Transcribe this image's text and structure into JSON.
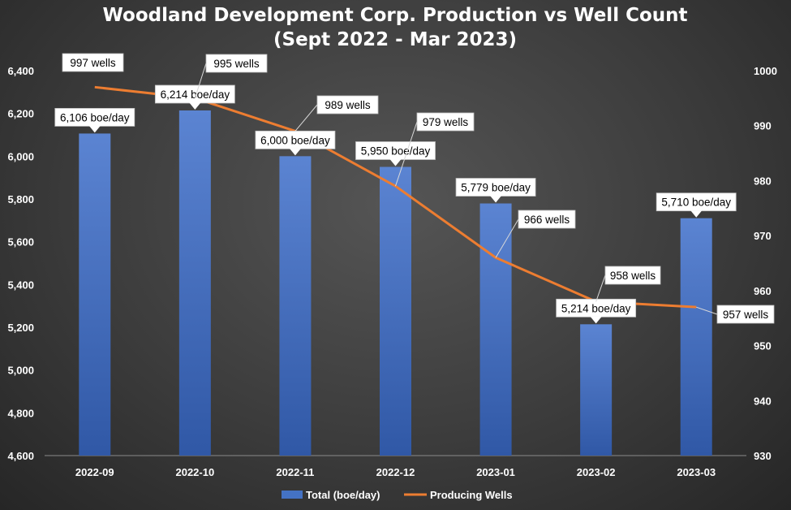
{
  "chart_data": {
    "type": "bar",
    "title": "Woodland Development Corp. Production vs Well Count",
    "subtitle": "(Sept 2022 - Mar  2023)",
    "categories": [
      "2022-09",
      "2022-10",
      "2022-11",
      "2022-12",
      "2023-01",
      "2023-02",
      "2023-03"
    ],
    "series": [
      {
        "name": "Total (boe/day)",
        "type": "bar",
        "axis": "left",
        "values": [
          6106,
          6214,
          6000,
          5950,
          5779,
          5214,
          5710
        ],
        "labels": [
          "6,106 boe/day",
          "6,214 boe/day",
          "6,000 boe/day",
          "5,950 boe/day",
          "5,779 boe/day",
          "5,214 boe/day",
          "5,710 boe/day"
        ],
        "color": "#4472c4"
      },
      {
        "name": "Producing Wells",
        "type": "line",
        "axis": "right",
        "values": [
          997,
          995,
          989,
          979,
          966,
          958,
          957
        ],
        "labels": [
          "997 wells",
          "995 wells",
          "989 wells",
          "979 wells",
          "966 wells",
          "958 wells",
          "957 wells"
        ],
        "color": "#ed7d31"
      }
    ],
    "y_left": {
      "ylim": [
        4600,
        6400
      ],
      "ticks": [
        4600,
        4800,
        5000,
        5200,
        5400,
        5600,
        5800,
        6000,
        6200,
        6400
      ],
      "tick_labels": [
        "4,600",
        "4,800",
        "5,000",
        "5,200",
        "5,400",
        "5,600",
        "5,800",
        "6,000",
        "6,200",
        "6,400"
      ]
    },
    "y_right": {
      "ylim": [
        930,
        1000
      ],
      "ticks": [
        930,
        940,
        950,
        960,
        970,
        980,
        990,
        1000
      ],
      "tick_labels": [
        "930",
        "940",
        "950",
        "960",
        "970",
        "980",
        "990",
        "1000"
      ]
    },
    "grid": false,
    "legend": "bottom"
  }
}
